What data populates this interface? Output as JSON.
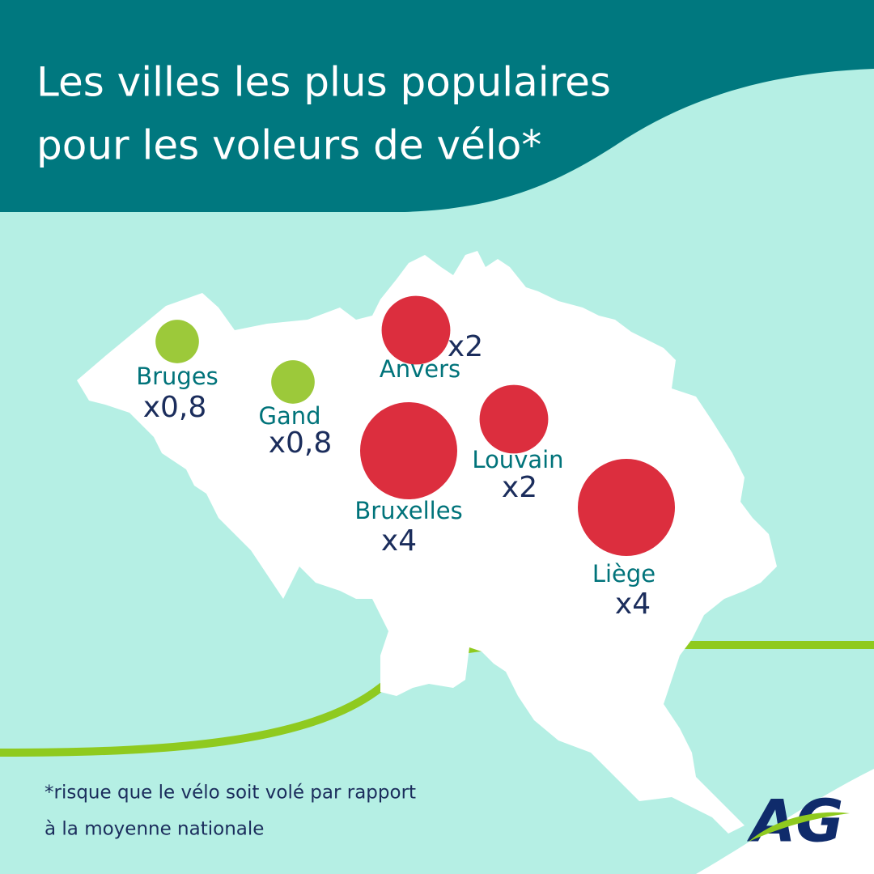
{
  "title": [
    "Les villes les plus populaires",
    "pour les voleurs de vélo*"
  ],
  "cities": [
    {
      "name": "Bruges",
      "value": 0.8,
      "label": "x0,8",
      "color": "#9cc93a"
    },
    {
      "name": "Gand",
      "value": 0.8,
      "label": "x0,8",
      "color": "#9cc93a"
    },
    {
      "name": "Anvers",
      "value": 2,
      "label": "x2",
      "color": "#dc2e3e"
    },
    {
      "name": "Bruxelles",
      "value": 4,
      "label": "x4",
      "color": "#dc2e3e"
    },
    {
      "name": "Louvain",
      "value": 2,
      "label": "x2",
      "color": "#dc2e3e"
    },
    {
      "name": "Liège",
      "value": 4,
      "label": "x4",
      "color": "#dc2e3e"
    }
  ],
  "footnote": [
    "*risque que le vélo soit volé par rapport",
    "à la moyenne nationale"
  ],
  "logo": "AG"
}
